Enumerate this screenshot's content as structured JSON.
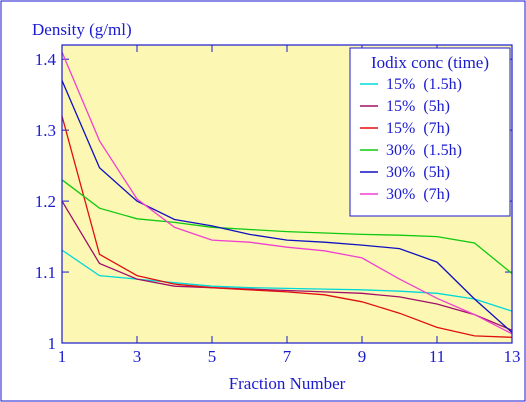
{
  "chart_data": {
    "type": "line",
    "title": "",
    "ylabel": "Density (g/ml)",
    "xlabel": "Fraction Number",
    "xlim": [
      1,
      13
    ],
    "ylim": [
      1,
      1.42
    ],
    "xticks": [
      1,
      3,
      5,
      7,
      9,
      11,
      13
    ],
    "yticks": [
      1,
      1.1,
      1.2,
      1.3,
      1.4
    ],
    "ytick_labels": [
      "1",
      "1.1",
      "1.2",
      "1.3",
      "1.4"
    ],
    "x": [
      1,
      2,
      3,
      4,
      5,
      6,
      7,
      8,
      9,
      10,
      11,
      12,
      13
    ],
    "legend": {
      "title": "Iodix conc (time)",
      "placement": "top-right"
    },
    "colors": {
      "plot_background": "#fcf8b4",
      "text": "#1a1ad0",
      "frame": "#1a1ad0"
    },
    "series": [
      {
        "name": "15%  (1.5h)",
        "color": "#00d8d8",
        "values": [
          1.131,
          1.095,
          1.09,
          1.085,
          1.08,
          1.078,
          1.077,
          1.076,
          1.075,
          1.073,
          1.07,
          1.062,
          1.045
        ]
      },
      {
        "name": "15%  (5h)",
        "color": "#a0106a",
        "values": [
          1.2,
          1.112,
          1.09,
          1.08,
          1.078,
          1.076,
          1.074,
          1.072,
          1.07,
          1.065,
          1.055,
          1.04,
          1.018
        ]
      },
      {
        "name": "15%  (7h)",
        "color": "#e01010",
        "values": [
          1.32,
          1.125,
          1.095,
          1.083,
          1.078,
          1.075,
          1.072,
          1.068,
          1.058,
          1.042,
          1.022,
          1.01,
          1.008
        ]
      },
      {
        "name": "30%  (1.5h)",
        "color": "#10c810",
        "values": [
          1.23,
          1.19,
          1.175,
          1.17,
          1.163,
          1.16,
          1.157,
          1.155,
          1.153,
          1.152,
          1.15,
          1.141,
          1.098
        ]
      },
      {
        "name": "30%  (5h)",
        "color": "#1010c0",
        "values": [
          1.37,
          1.247,
          1.2,
          1.174,
          1.165,
          1.153,
          1.145,
          1.142,
          1.138,
          1.133,
          1.114,
          1.062,
          1.015
        ]
      },
      {
        "name": "30%  (7h)",
        "color": "#f040d0",
        "values": [
          1.41,
          1.285,
          1.203,
          1.163,
          1.145,
          1.142,
          1.135,
          1.13,
          1.12,
          1.09,
          1.063,
          1.04,
          1.013
        ]
      }
    ]
  }
}
